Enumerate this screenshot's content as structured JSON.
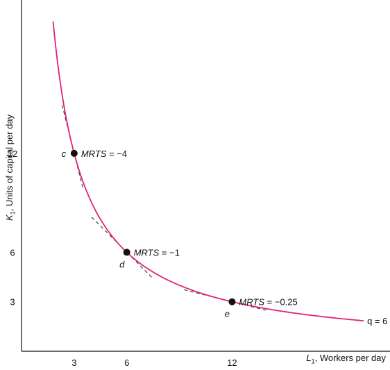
{
  "chart_data": {
    "type": "line",
    "title": "",
    "xlabel": {
      "var": "L",
      "sub": "1",
      "text": ", Workers per day"
    },
    "ylabel": {
      "var": "K",
      "sub": "1",
      "text": ", Units of capital per day"
    },
    "xlim": [
      0,
      21
    ],
    "ylim": [
      0,
      21
    ],
    "xticks": [
      3,
      6,
      12
    ],
    "yticks": [
      3,
      6,
      12
    ],
    "grid": false,
    "curve": {
      "name": "q = 6",
      "equation": "K = 36 / L",
      "color": "#e0227a",
      "x_range": [
        1.8,
        19.5
      ]
    },
    "points": [
      {
        "label": "c",
        "x": 3,
        "y": 12,
        "mrts": -4,
        "annotation": "MRTS = −4"
      },
      {
        "label": "d",
        "x": 6,
        "y": 6,
        "mrts": -1,
        "annotation": "MRTS = −1"
      },
      {
        "label": "e",
        "x": 12,
        "y": 3,
        "mrts": -0.25,
        "annotation": "MRTS = −0.25"
      }
    ]
  }
}
